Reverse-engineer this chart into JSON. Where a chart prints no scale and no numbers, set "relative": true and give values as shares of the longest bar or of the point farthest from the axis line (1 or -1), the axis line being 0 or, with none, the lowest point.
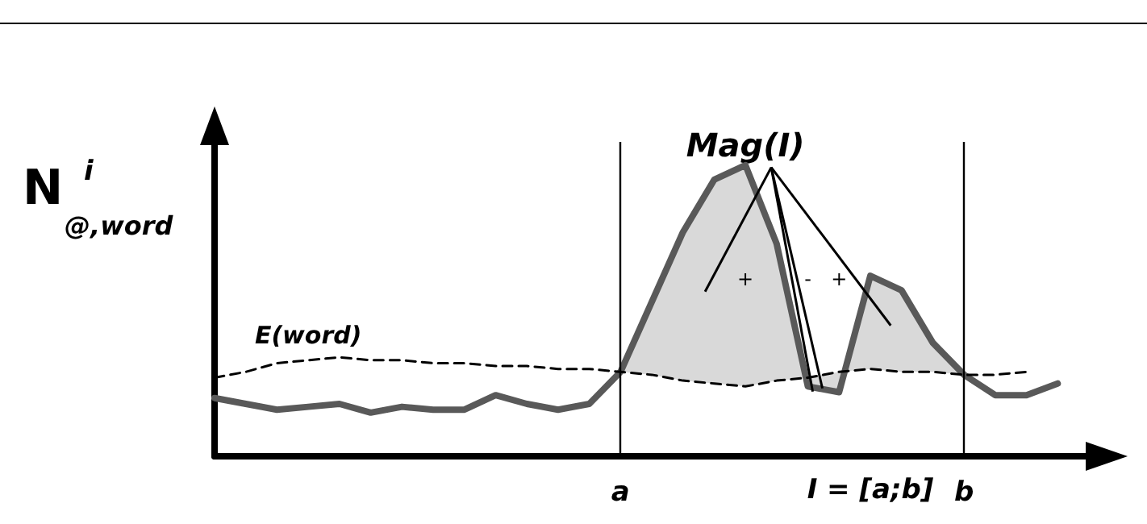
{
  "chart_data": {
    "type": "line",
    "relative": true,
    "ylabel": "N$^{i}$$_{@,word}$",
    "marker": "none",
    "categories": [
      null,
      null,
      null,
      null,
      null,
      null,
      null,
      null,
      null,
      null,
      null,
      null,
      null,
      "a",
      null,
      null,
      null,
      null,
      null,
      null,
      null,
      null,
      null,
      null,
      "b",
      null,
      null,
      null,
      null
    ],
    "series": [
      {
        "color": "#595959",
        "line_style": "solid",
        "values": [
          0.2,
          0.18,
          0.16,
          0.17,
          0.18,
          0.15,
          0.17,
          0.16,
          0.16,
          0.21,
          0.18,
          0.16,
          0.18,
          0.29,
          0.53,
          0.77,
          0.95,
          1.0,
          0.73,
          0.24,
          0.22,
          0.62,
          0.57,
          0.39,
          0.28,
          0.21,
          0.21,
          0.25,
          null
        ]
      },
      {
        "name": "E(word)",
        "color": "#000000",
        "line_style": "dashed",
        "values": [
          0.27,
          0.29,
          0.32,
          0.33,
          0.34,
          0.33,
          0.33,
          0.32,
          0.32,
          0.31,
          0.31,
          0.3,
          0.3,
          0.29,
          0.28,
          0.26,
          0.25,
          0.24,
          0.26,
          0.27,
          0.29,
          0.3,
          0.29,
          0.29,
          0.28,
          0.28,
          0.29,
          null,
          null
        ]
      }
    ],
    "ref_lines": [
      {
        "axis": "x",
        "value": "a",
        "color": "#000000"
      },
      {
        "axis": "x",
        "value": "b",
        "color": "#000000"
      }
    ],
    "annotations": [
      "Mag(I)",
      "+",
      "-",
      "+",
      "I = [a;b]"
    ]
  }
}
